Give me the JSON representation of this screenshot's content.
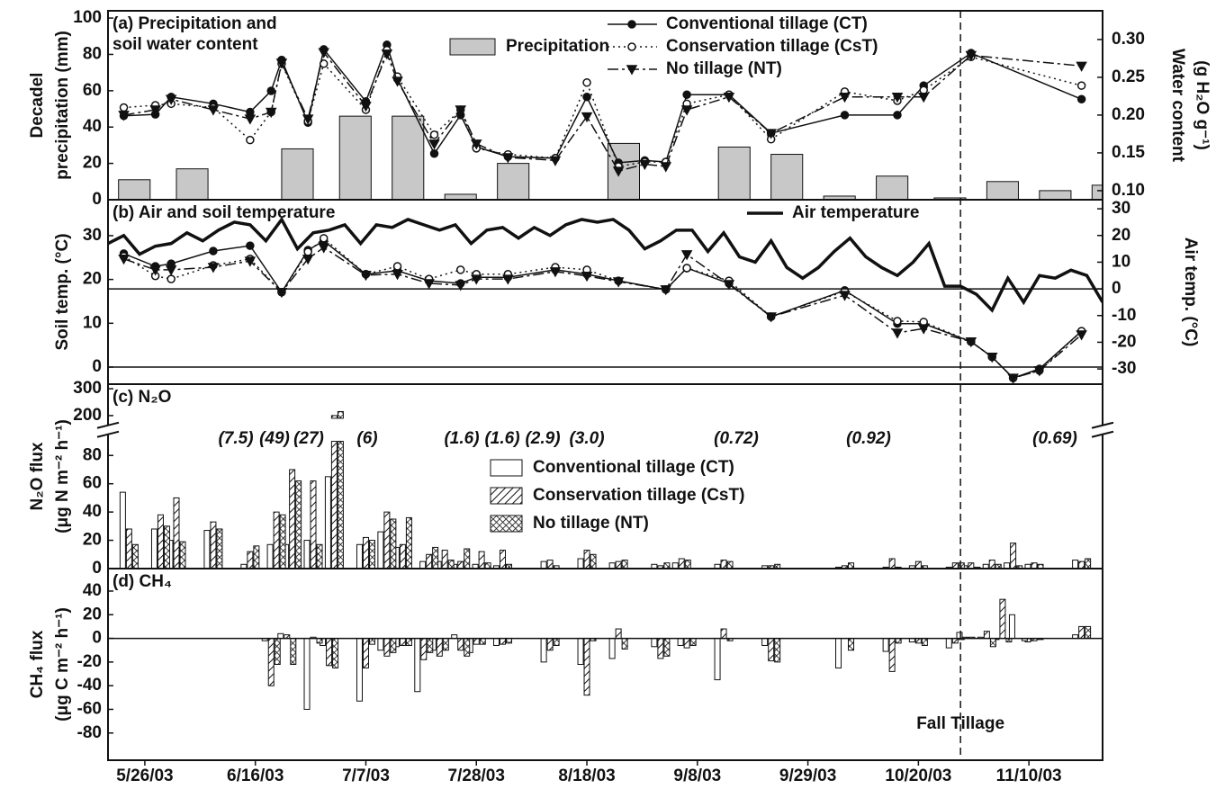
{
  "chart_data": [
    {
      "type": "combo",
      "title": [
        "(a) Precipitation and",
        "soil water content"
      ],
      "ylabel": [
        "Decadel",
        "precipitation (mm)"
      ],
      "y2label": [
        "Water content",
        "(g H₂O g⁻¹)"
      ],
      "xlim": [
        "2003-05-19",
        "2003-11-24"
      ],
      "ylim": [
        0,
        104
      ],
      "yticks": [
        0,
        20,
        40,
        60,
        80,
        100
      ],
      "y2lim": [
        0.088,
        0.338
      ],
      "y2ticks": [
        {
          "value": 0.1,
          "label": "0.10"
        },
        0.15,
        {
          "value": 0.2,
          "label": "0.20"
        },
        0.25,
        {
          "value": 0.3,
          "label": "0.30"
        }
      ],
      "bars": {
        "name": "Precipitation",
        "color": "#c8c8c8",
        "x": [
          "2003-05-24",
          "2003-06-04",
          "2003-06-24",
          "2003-07-05",
          "2003-07-15",
          "2003-07-25",
          "2003-08-04",
          "2003-08-25",
          "2003-09-15",
          "2003-09-25",
          "2003-10-05",
          "2003-10-15",
          "2003-10-26",
          "2003-11-05",
          "2003-11-15",
          "2003-11-25"
        ],
        "values": [
          11,
          17,
          28,
          46,
          46,
          3,
          20,
          31,
          29,
          25,
          2,
          13,
          1,
          10,
          5,
          8
        ]
      },
      "x": [
        "2003-05-22",
        "2003-05-28",
        "2003-05-31",
        "2003-06-08",
        "2003-06-15",
        "2003-06-19",
        "2003-06-21",
        "2003-06-26",
        "2003-06-29",
        "2003-07-07",
        "2003-07-11",
        "2003-07-13",
        "2003-07-20",
        "2003-07-25",
        "2003-07-28",
        "2003-08-03",
        "2003-08-12",
        "2003-08-18",
        "2003-08-24",
        "2003-08-29",
        "2003-09-02",
        "2003-09-06",
        "2003-09-14",
        "2003-09-22",
        "2003-10-06",
        "2003-10-16",
        "2003-10-21",
        "2003-10-30",
        "2003-11-20"
      ],
      "series": [
        {
          "name": "Conventional tillage (CT)",
          "color": "#111111",
          "marker": "filled-circle",
          "dash": "solid",
          "axis": "y2",
          "values": [
            0.199,
            0.201,
            0.224,
            0.215,
            0.204,
            0.232,
            0.273,
            0.19,
            0.287,
            0.218,
            0.293,
            0.248,
            0.149,
            0.2,
            0.158,
            0.145,
            0.143,
            0.224,
            0.137,
            0.14,
            0.138,
            0.227,
            0.227,
            0.176,
            0.2,
            0.2,
            0.239,
            0.282,
            0.221
          ]
        },
        {
          "name": "Conservation tillage (CsT)",
          "color": "#111111",
          "marker": "open-circle",
          "dash": "dotted",
          "axis": "y2",
          "values": [
            0.21,
            0.213,
            0.215,
            0.21,
            0.167,
            0.204,
            0.268,
            0.192,
            0.268,
            0.207,
            0.286,
            0.251,
            0.174,
            0.207,
            0.156,
            0.148,
            0.143,
            0.243,
            0.132,
            0.138,
            0.138,
            0.215,
            0.227,
            0.168,
            0.231,
            0.219,
            0.233,
            0.277,
            0.239
          ]
        },
        {
          "name": "No tillage (NT)",
          "color": "#111111",
          "marker": "filled-triangle",
          "dash": "dashdot",
          "axis": "y2",
          "values": [
            0.2,
            0.207,
            0.221,
            0.207,
            0.195,
            0.204,
            0.269,
            0.195,
            0.283,
            0.212,
            0.281,
            0.245,
            0.162,
            0.207,
            0.162,
            0.144,
            0.14,
            0.198,
            0.126,
            0.135,
            0.132,
            0.207,
            0.224,
            0.176,
            0.224,
            0.224,
            0.224,
            0.279,
            0.265
          ]
        }
      ]
    },
    {
      "type": "line",
      "title": [
        "(b) Air and soil temperature"
      ],
      "ylabel": [
        "Soil temp. (°C)"
      ],
      "y2label": [
        "Air temp. (°C)"
      ],
      "xlim": [
        "2003-05-19",
        "2003-11-24"
      ],
      "ylim": [
        -3.9,
        38.2
      ],
      "yticks": [
        0,
        10,
        20,
        30
      ],
      "y2lim": [
        -35.7,
        33.4
      ],
      "y2ticks": [
        -30,
        -20,
        -10,
        0,
        10,
        20,
        30
      ],
      "zero_line": true,
      "x": [
        "2003-05-22",
        "2003-05-28",
        "2003-05-31",
        "2003-06-08",
        "2003-06-15",
        "2003-06-21",
        "2003-06-26",
        "2003-06-29",
        "2003-07-07",
        "2003-07-13",
        "2003-07-19",
        "2003-07-25",
        "2003-07-28",
        "2003-08-03",
        "2003-08-12",
        "2003-08-18",
        "2003-08-24",
        "2003-09-02",
        "2003-09-06",
        "2003-09-14",
        "2003-09-22",
        "2003-10-06",
        "2003-10-16",
        "2003-10-21",
        "2003-10-30",
        "2003-11-03",
        "2003-11-07",
        "2003-11-12",
        "2003-11-20"
      ],
      "series": [
        {
          "color": "#111111",
          "marker": "filled-circle",
          "dash": "solid",
          "values": [
            25.9,
            23.0,
            23.6,
            26.5,
            27.7,
            17.1,
            26.7,
            28.8,
            21.2,
            22.0,
            19.7,
            19.1,
            20.5,
            20.5,
            22.2,
            21.2,
            19.7,
            17.7,
            22.6,
            19.1,
            11.5,
            17.5,
            9.9,
            9.9,
            5.8,
            2.3,
            -2.5,
            -0.4,
            8.2
          ]
        },
        {
          "color": "#111111",
          "marker": "open-circle",
          "dash": "dotted",
          "values": [
            25.3,
            20.8,
            20.1,
            23.2,
            24.7,
            17.1,
            26.3,
            29.4,
            21.2,
            23.0,
            20.1,
            22.2,
            21.2,
            21.2,
            22.8,
            22.2,
            19.7,
            17.7,
            22.6,
            19.7,
            11.5,
            17.3,
            10.5,
            10.3,
            5.8,
            2.3,
            -2.5,
            -0.8,
            8.2
          ]
        },
        {
          "color": "#111111",
          "marker": "filled-triangle",
          "dash": "dashdot",
          "values": [
            24.7,
            22.2,
            22.2,
            22.8,
            24.2,
            17.1,
            24.7,
            27.3,
            21.0,
            21.2,
            19.1,
            18.7,
            20.1,
            20.1,
            21.8,
            20.8,
            19.5,
            17.7,
            25.7,
            18.9,
            11.5,
            16.4,
            7.8,
            8.8,
            5.8,
            2.3,
            -2.5,
            -0.8,
            7.4
          ]
        },
        {
          "name": "Air temperature",
          "color": "#111111",
          "dash": "thick",
          "axis": "y2",
          "x": [
            "2003-05-19",
            "2003-05-22",
            "2003-05-25",
            "2003-05-28",
            "2003-05-31",
            "2003-06-03",
            "2003-06-06",
            "2003-06-09",
            "2003-06-12",
            "2003-06-15",
            "2003-06-18",
            "2003-06-21",
            "2003-06-24",
            "2003-06-27",
            "2003-06-30",
            "2003-07-03",
            "2003-07-06",
            "2003-07-09",
            "2003-07-12",
            "2003-07-15",
            "2003-07-18",
            "2003-07-21",
            "2003-07-24",
            "2003-07-27",
            "2003-07-30",
            "2003-08-02",
            "2003-08-05",
            "2003-08-08",
            "2003-08-11",
            "2003-08-14",
            "2003-08-17",
            "2003-08-20",
            "2003-08-23",
            "2003-08-26",
            "2003-08-29",
            "2003-09-01",
            "2003-09-04",
            "2003-09-07",
            "2003-09-10",
            "2003-09-13",
            "2003-09-16",
            "2003-09-19",
            "2003-09-22",
            "2003-09-25",
            "2003-09-28",
            "2003-10-01",
            "2003-10-04",
            "2003-10-07",
            "2003-10-10",
            "2003-10-13",
            "2003-10-16",
            "2003-10-19",
            "2003-10-22",
            "2003-10-25",
            "2003-10-28",
            "2003-10-31",
            "2003-11-03",
            "2003-11-06",
            "2003-11-09",
            "2003-11-12",
            "2003-11-15",
            "2003-11-18",
            "2003-11-21",
            "2003-11-24"
          ],
          "values": [
            17,
            20,
            13,
            16,
            17,
            21,
            18,
            22,
            25,
            24,
            18,
            26,
            15,
            21,
            22,
            24,
            17,
            24,
            23,
            26,
            24,
            22,
            24,
            17,
            22,
            23,
            19,
            23,
            20,
            24,
            26,
            25,
            26,
            22,
            15,
            18,
            22,
            22,
            14,
            21,
            12,
            10,
            18,
            8,
            4,
            8,
            14,
            19,
            12,
            8,
            5,
            10,
            17,
            1,
            1,
            -2,
            -8,
            4,
            -5,
            5,
            4,
            7,
            5,
            -5
          ]
        }
      ]
    },
    {
      "type": "bar",
      "title": [
        "(c) N₂O"
      ],
      "ylabel": [
        "N₂O flux",
        "(μg N m⁻² h⁻¹)"
      ],
      "xlim": [
        "2003-05-19",
        "2003-11-24"
      ],
      "ylim": [
        0,
        317
      ],
      "axis_break": [
        90,
        190
      ],
      "yticks": [
        0,
        20,
        40,
        60,
        80,
        200,
        300
      ],
      "annotations": [
        "(7.5)",
        "(49)",
        "(27)",
        "(6)",
        "(1.6)",
        "(1.6)",
        "(2.9)",
        "(3.0)",
        "(0.72)",
        "(0.92)",
        "(0.69)"
      ],
      "x": [
        "2003-05-23",
        "2003-05-29",
        "2003-06-01",
        "2003-06-08",
        "2003-06-15",
        "2003-06-20",
        "2003-06-23",
        "2003-06-27",
        "2003-07-01",
        "2003-07-07",
        "2003-07-11",
        "2003-07-14",
        "2003-07-19",
        "2003-07-22",
        "2003-07-25",
        "2003-07-29",
        "2003-08-02",
        "2003-08-11",
        "2003-08-18",
        "2003-08-24",
        "2003-09-01",
        "2003-09-05",
        "2003-09-13",
        "2003-09-22",
        "2003-10-06",
        "2003-10-15",
        "2003-10-20",
        "2003-10-27",
        "2003-10-30",
        "2003-11-03",
        "2003-11-07",
        "2003-11-11",
        "2003-11-20"
      ],
      "series": [
        {
          "name": "Conventional tillage (CT)",
          "color": "#ffffff",
          "values": [
            54,
            28,
            20,
            27,
            3,
            17,
            17,
            20,
            65,
            17,
            26,
            15,
            5,
            5,
            3,
            3,
            2,
            5,
            7,
            4,
            3,
            4,
            3,
            2,
            1,
            1,
            2,
            1,
            2,
            3,
            4,
            3,
            6
          ]
        },
        {
          "name": "Conservation tillage (CsT)",
          "color": "#ffffff",
          "pattern": "hatch",
          "values": [
            28,
            38,
            50,
            33,
            12,
            40,
            70,
            62,
            200,
            22,
            40,
            17,
            10,
            13,
            5,
            12,
            13,
            6,
            13,
            5,
            2,
            7,
            6,
            2,
            2,
            7,
            5,
            4,
            4,
            6,
            18,
            4,
            5
          ]
        },
        {
          "name": "No tillage (NT)",
          "color": "#ffffff",
          "pattern": "cross",
          "values": [
            17,
            30,
            19,
            28,
            16,
            38,
            62,
            17,
            215,
            20,
            35,
            36,
            15,
            6,
            14,
            4,
            3,
            2,
            10,
            6,
            4,
            6,
            5,
            3,
            4,
            1,
            2,
            4,
            1,
            3,
            2,
            3,
            7
          ]
        }
      ]
    },
    {
      "type": "bar",
      "title": [
        "(d) CH₄"
      ],
      "ylabel": [
        "CH₄ flux",
        "(μg C m⁻² h⁻¹)"
      ],
      "xlim": [
        "2003-05-19",
        "2003-11-24"
      ],
      "xticks": [
        {
          "value": "2003-05-26",
          "label": "5/26/03"
        },
        {
          "value": "2003-06-16",
          "label": "6/16/03"
        },
        {
          "value": "2003-07-07",
          "label": "7/7/03"
        },
        {
          "value": "2003-07-28",
          "label": "7/28/03"
        },
        {
          "value": "2003-08-18",
          "label": "8/18/03"
        },
        {
          "value": "2003-09-08",
          "label": "9/8/03"
        },
        {
          "value": "2003-09-29",
          "label": "9/29/03"
        },
        {
          "value": "2003-10-20",
          "label": "10/20/03"
        },
        {
          "value": "2003-11-10",
          "label": "11/10/03"
        }
      ],
      "ylim": [
        -103,
        59
      ],
      "yticks": [
        -80,
        -60,
        -40,
        -20,
        0,
        20,
        40
      ],
      "zero_line": true,
      "vline": {
        "x": "2003-10-28",
        "label": "Fall Tillage"
      },
      "x": [
        "2003-06-19",
        "2003-06-22",
        "2003-06-27",
        "2003-06-30",
        "2003-07-07",
        "2003-07-11",
        "2003-07-14",
        "2003-07-18",
        "2003-07-21",
        "2003-07-25",
        "2003-07-28",
        "2003-08-02",
        "2003-08-11",
        "2003-08-18",
        "2003-08-24",
        "2003-09-01",
        "2003-09-06",
        "2003-09-13",
        "2003-09-22",
        "2003-10-06",
        "2003-10-15",
        "2003-10-20",
        "2003-10-27",
        "2003-10-29",
        "2003-11-02",
        "2003-11-05",
        "2003-11-08",
        "2003-11-11",
        "2003-11-20"
      ],
      "series": [
        {
          "color": "#ffffff",
          "values": [
            -2,
            4,
            -60,
            -6,
            -53,
            -10,
            -7,
            -45,
            -10,
            3,
            -12,
            -6,
            -20,
            -22,
            -17,
            -7,
            -6,
            -35,
            -6,
            -25,
            -11,
            -3,
            -8,
            5,
            1,
            -1,
            20,
            -3,
            3
          ]
        },
        {
          "color": "#ffffff",
          "pattern": "hatch",
          "values": [
            -40,
            3,
            1,
            -23,
            -25,
            -15,
            -6,
            -18,
            -15,
            -10,
            -5,
            -5,
            -10,
            -48,
            8,
            -17,
            -8,
            8,
            -19,
            0,
            -28,
            -4,
            -4,
            1,
            6,
            33,
            0,
            -2,
            10
          ]
        },
        {
          "color": "#ffffff",
          "pattern": "cross",
          "values": [
            -22,
            -22,
            -4,
            -25,
            -5,
            -12,
            -6,
            -12,
            -10,
            -15,
            -5,
            -4,
            -6,
            -2,
            -9,
            -15,
            -6,
            -2,
            -20,
            -10,
            -4,
            -6,
            -1,
            1,
            -7,
            -3,
            -2,
            -1,
            10
          ]
        }
      ]
    }
  ]
}
